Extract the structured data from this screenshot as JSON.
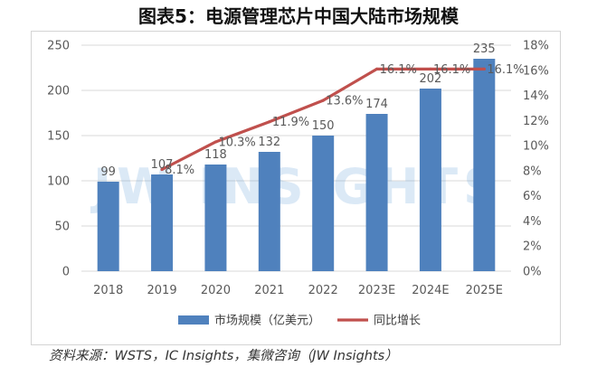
{
  "title": "图表5：电源管理芯片中国大陆市场规模",
  "source": "资料来源：WSTS，IC Insights，集微咨询（JW Insights）",
  "watermark": "JW INSIGHTS",
  "chart_data": {
    "type": "bar",
    "categories": [
      "2018",
      "2019",
      "2020",
      "2021",
      "2022",
      "2023E",
      "2024E",
      "2025E"
    ],
    "series": [
      {
        "name": "市场规模（亿美元）",
        "type": "bar",
        "axis": "left",
        "color": "#4f81bd",
        "values": [
          99,
          107,
          118,
          132,
          150,
          174,
          202,
          235
        ]
      },
      {
        "name": "同比增长",
        "type": "line",
        "axis": "right",
        "color": "#c0504d",
        "values": [
          null,
          8.1,
          10.3,
          11.9,
          13.6,
          16.1,
          16.1,
          16.1
        ],
        "labels": [
          "",
          "8.1%",
          "10.3%",
          "11.9%",
          "13.6%",
          "16.1%",
          "16.1%",
          "16.1%"
        ]
      }
    ],
    "ylim": [
      0,
      250
    ],
    "yticks": [
      "0",
      "50",
      "100",
      "150",
      "200",
      "250"
    ],
    "y2lim": [
      0,
      18
    ],
    "y2ticks": [
      "0%",
      "2%",
      "4%",
      "6%",
      "8%",
      "10%",
      "12%",
      "14%",
      "16%",
      "18%"
    ],
    "grid": true,
    "legend_position": "bottom"
  }
}
